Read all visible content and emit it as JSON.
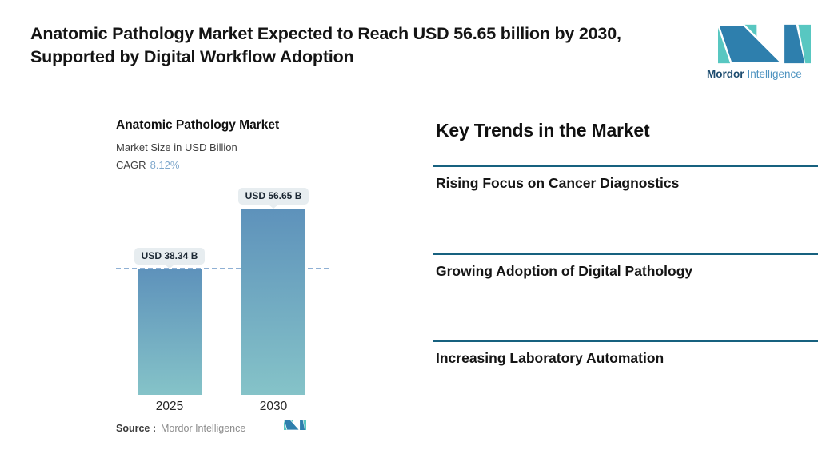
{
  "header": {
    "title": "Anatomic Pathology Market Expected to Reach USD 56.65 billion by 2030, Supported by Digital Workflow Adoption",
    "brand": {
      "name_primary": "Mordor",
      "name_secondary": "Intelligence"
    }
  },
  "chart_data": {
    "type": "bar",
    "title": "Anatomic Pathology Market",
    "subtitle": "Market Size in USD Billion",
    "cagr_label": "CAGR",
    "cagr_value": "8.12%",
    "categories": [
      "2025",
      "2030"
    ],
    "values": [
      38.34,
      56.65
    ],
    "value_labels": [
      "USD 38.34 B",
      "USD 56.65 B"
    ],
    "ylabel": "Market Size in USD Billion",
    "ylim": [
      0,
      56.65
    ],
    "baseline_dashed_at": 38.34,
    "grid": "off",
    "legend": "none",
    "colors": {
      "bar_top": "#5e92bb",
      "bar_bottom": "#85c3c8",
      "dashed_line": "#8fb0d4",
      "callout_bg": "#e7edf0",
      "cagr_value": "#7fa8cc"
    },
    "source_label": "Source :",
    "source_value": "Mordor Intelligence"
  },
  "trends": {
    "heading": "Key Trends in the Market",
    "divider_color": "#17617f",
    "items": [
      {
        "label": "Rising Focus on Cancer Diagnostics"
      },
      {
        "label": "Growing Adoption of Digital Pathology"
      },
      {
        "label": "Increasing Laboratory Automation"
      }
    ]
  },
  "logo_colors": {
    "teal": "#58c7c1",
    "blue": "#2e7fad"
  }
}
